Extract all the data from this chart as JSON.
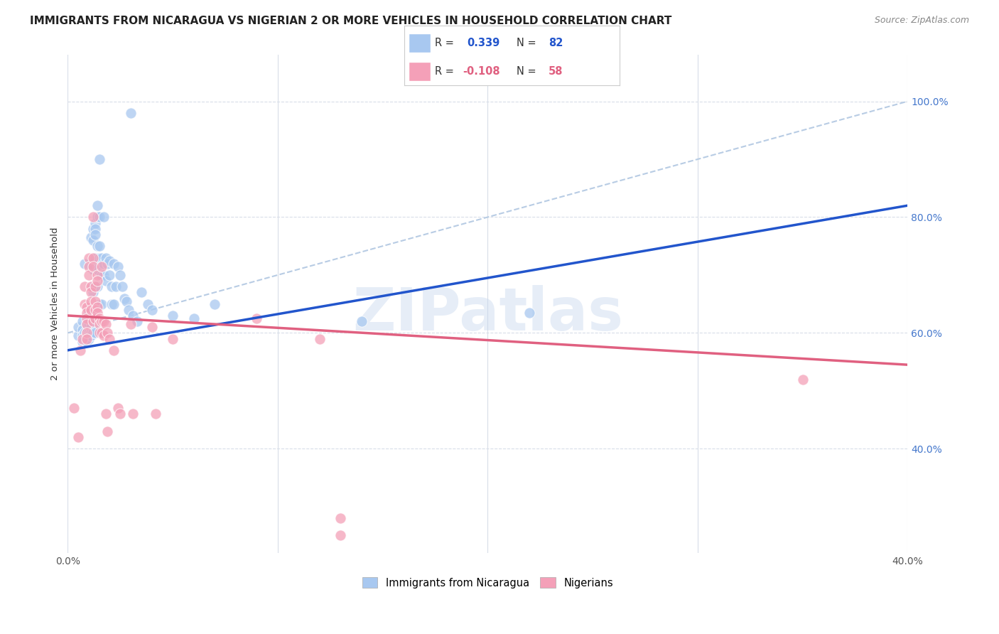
{
  "title": "IMMIGRANTS FROM NICARAGUA VS NIGERIAN 2 OR MORE VEHICLES IN HOUSEHOLD CORRELATION CHART",
  "source": "Source: ZipAtlas.com",
  "ylabel": "2 or more Vehicles in Household",
  "ytick_labels": [
    "100.0%",
    "80.0%",
    "60.0%",
    "40.0%"
  ],
  "ytick_values": [
    100.0,
    80.0,
    60.0,
    40.0
  ],
  "xlim": [
    0.0,
    40.0
  ],
  "ylim": [
    22.0,
    108.0
  ],
  "legend_r1": "R =  0.339",
  "legend_n1": "N = 82",
  "legend_r2": "R = -0.108",
  "legend_n2": "N = 58",
  "color_blue": "#a8c8f0",
  "color_pink": "#f4a0b8",
  "color_blue_line": "#2255cc",
  "color_pink_line": "#e06080",
  "color_dashed": "#b8cce4",
  "watermark": "ZIPatlas",
  "blue_dots": [
    [
      0.5,
      59.5
    ],
    [
      0.5,
      61.0
    ],
    [
      0.7,
      62.0
    ],
    [
      0.7,
      60.5
    ],
    [
      0.7,
      59.5
    ],
    [
      0.7,
      58.5
    ],
    [
      0.8,
      72.0
    ],
    [
      0.8,
      60.0
    ],
    [
      0.9,
      61.5
    ],
    [
      0.9,
      60.0
    ],
    [
      0.9,
      59.5
    ],
    [
      0.9,
      58.5
    ],
    [
      1.0,
      63.5
    ],
    [
      1.0,
      62.5
    ],
    [
      1.0,
      61.5
    ],
    [
      1.0,
      60.0
    ],
    [
      1.0,
      59.5
    ],
    [
      1.0,
      59.0
    ],
    [
      1.1,
      76.5
    ],
    [
      1.1,
      63.0
    ],
    [
      1.1,
      62.0
    ],
    [
      1.1,
      61.0
    ],
    [
      1.1,
      60.0
    ],
    [
      1.1,
      59.5
    ],
    [
      1.2,
      78.0
    ],
    [
      1.2,
      76.0
    ],
    [
      1.2,
      72.0
    ],
    [
      1.2,
      71.0
    ],
    [
      1.2,
      68.0
    ],
    [
      1.2,
      67.0
    ],
    [
      1.2,
      60.0
    ],
    [
      1.3,
      79.0
    ],
    [
      1.3,
      78.0
    ],
    [
      1.3,
      77.0
    ],
    [
      1.3,
      73.0
    ],
    [
      1.3,
      61.5
    ],
    [
      1.3,
      60.0
    ],
    [
      1.4,
      82.0
    ],
    [
      1.4,
      80.0
    ],
    [
      1.4,
      75.0
    ],
    [
      1.4,
      72.0
    ],
    [
      1.4,
      71.0
    ],
    [
      1.4,
      68.0
    ],
    [
      1.5,
      90.0
    ],
    [
      1.5,
      80.0
    ],
    [
      1.5,
      75.0
    ],
    [
      1.5,
      73.0
    ],
    [
      1.5,
      65.0
    ],
    [
      1.6,
      73.0
    ],
    [
      1.6,
      70.0
    ],
    [
      1.6,
      65.0
    ],
    [
      1.7,
      80.0
    ],
    [
      1.7,
      72.0
    ],
    [
      1.7,
      70.0
    ],
    [
      1.8,
      73.0
    ],
    [
      1.8,
      69.0
    ],
    [
      1.9,
      72.0
    ],
    [
      2.0,
      72.5
    ],
    [
      2.0,
      70.0
    ],
    [
      2.1,
      68.0
    ],
    [
      2.1,
      65.0
    ],
    [
      2.2,
      72.0
    ],
    [
      2.2,
      65.0
    ],
    [
      2.3,
      68.0
    ],
    [
      2.4,
      71.5
    ],
    [
      2.5,
      70.0
    ],
    [
      2.6,
      68.0
    ],
    [
      2.7,
      66.0
    ],
    [
      2.8,
      65.5
    ],
    [
      2.9,
      64.0
    ],
    [
      3.1,
      63.0
    ],
    [
      3.3,
      62.0
    ],
    [
      3.5,
      67.0
    ],
    [
      3.8,
      65.0
    ],
    [
      4.0,
      64.0
    ],
    [
      5.0,
      63.0
    ],
    [
      6.0,
      62.5
    ],
    [
      7.0,
      65.0
    ],
    [
      14.0,
      62.0
    ],
    [
      22.0,
      63.5
    ],
    [
      3.0,
      98.0
    ]
  ],
  "pink_dots": [
    [
      0.3,
      47.0
    ],
    [
      0.5,
      42.0
    ],
    [
      0.6,
      57.0
    ],
    [
      0.7,
      59.0
    ],
    [
      0.8,
      68.0
    ],
    [
      0.8,
      65.0
    ],
    [
      0.9,
      64.5
    ],
    [
      0.9,
      63.5
    ],
    [
      0.9,
      62.5
    ],
    [
      0.9,
      61.5
    ],
    [
      0.9,
      60.0
    ],
    [
      0.9,
      59.0
    ],
    [
      1.0,
      73.0
    ],
    [
      1.0,
      71.5
    ],
    [
      1.0,
      70.0
    ],
    [
      1.1,
      68.0
    ],
    [
      1.1,
      67.0
    ],
    [
      1.1,
      65.5
    ],
    [
      1.1,
      64.0
    ],
    [
      1.2,
      80.0
    ],
    [
      1.2,
      73.0
    ],
    [
      1.2,
      71.5
    ],
    [
      1.2,
      62.0
    ],
    [
      1.3,
      68.0
    ],
    [
      1.3,
      65.5
    ],
    [
      1.3,
      64.0
    ],
    [
      1.3,
      62.5
    ],
    [
      1.4,
      70.0
    ],
    [
      1.4,
      69.0
    ],
    [
      1.4,
      64.5
    ],
    [
      1.4,
      63.5
    ],
    [
      1.5,
      62.5
    ],
    [
      1.5,
      61.5
    ],
    [
      1.5,
      60.0
    ],
    [
      1.6,
      71.5
    ],
    [
      1.6,
      62.0
    ],
    [
      1.6,
      60.0
    ],
    [
      1.7,
      62.0
    ],
    [
      1.7,
      59.5
    ],
    [
      1.8,
      61.5
    ],
    [
      1.8,
      46.0
    ],
    [
      1.9,
      60.0
    ],
    [
      1.9,
      43.0
    ],
    [
      2.0,
      59.0
    ],
    [
      2.2,
      57.0
    ],
    [
      2.4,
      47.0
    ],
    [
      2.5,
      46.0
    ],
    [
      3.0,
      61.5
    ],
    [
      3.1,
      46.0
    ],
    [
      4.0,
      61.0
    ],
    [
      4.2,
      46.0
    ],
    [
      5.0,
      59.0
    ],
    [
      9.0,
      62.5
    ],
    [
      12.0,
      59.0
    ],
    [
      13.0,
      28.0
    ],
    [
      35.0,
      52.0
    ],
    [
      13.0,
      25.0
    ]
  ],
  "blue_line_x": [
    0.0,
    40.0
  ],
  "blue_line_y": [
    57.0,
    82.0
  ],
  "pink_line_x": [
    0.0,
    40.0
  ],
  "pink_line_y": [
    63.0,
    54.5
  ],
  "diag_line_x": [
    0.0,
    40.0
  ],
  "diag_line_y": [
    60.0,
    100.0
  ],
  "xtick_positions": [
    0.0,
    10.0,
    20.0,
    30.0,
    40.0
  ],
  "grid_ytick_values": [
    100.0,
    80.0,
    60.0,
    40.0
  ],
  "grid_color": "#d8dde8",
  "bg_color": "#ffffff",
  "title_fontsize": 12,
  "label_fontsize": 10
}
